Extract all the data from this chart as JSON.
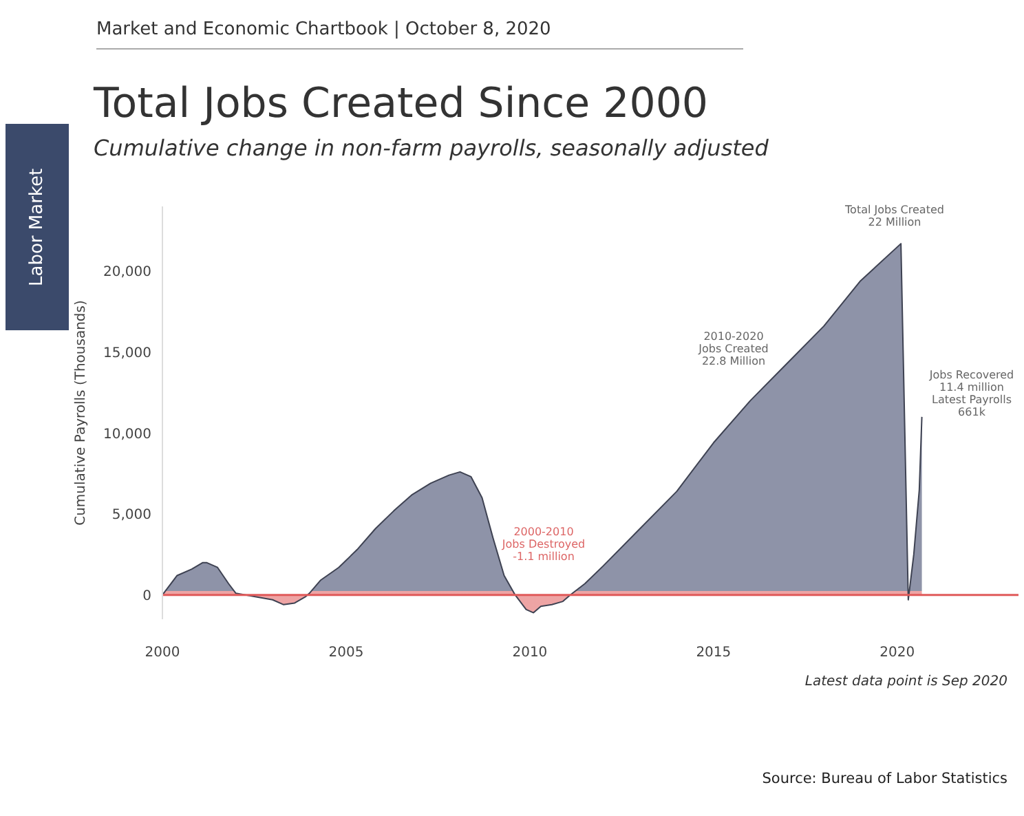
{
  "chart_data": {
    "type": "area",
    "title": "Total Jobs Created Since 2000",
    "subtitle": "Cumulative change in non-farm payrolls, seasonally adjusted",
    "ylabel": "Cumulative Payrolls (Thousands)",
    "x": [
      2000,
      2000.4,
      2000.8,
      2001.1,
      2001.2,
      2001.5,
      2001.8,
      2002.0,
      2002.5,
      2003.0,
      2003.3,
      2003.6,
      2003.9,
      2004.0,
      2004.3,
      2004.8,
      2005.3,
      2005.8,
      2006.3,
      2006.8,
      2007.3,
      2007.8,
      2008.1,
      2008.4,
      2008.7,
      2009.0,
      2009.3,
      2009.6,
      2009.9,
      2010.1,
      2010.3,
      2010.6,
      2010.9,
      2011.1,
      2011.5,
      2012,
      2013,
      2014,
      2015,
      2016,
      2017,
      2018,
      2019,
      2020.1,
      2020.3,
      2020.45,
      2020.6,
      2020.67
    ],
    "series": [
      {
        "color": "#8e93a8",
        "values": [
          0,
          1200,
          1600,
          2000,
          2000,
          1700,
          700,
          100,
          -100,
          -300,
          -600,
          -500,
          -100,
          100,
          900,
          1700,
          2800,
          4100,
          5200,
          6200,
          6900,
          7400,
          7600,
          7300,
          6000,
          3500,
          1200,
          0,
          -900,
          -1100,
          -700,
          -600,
          -400,
          0,
          700,
          1800,
          4100,
          6400,
          9400,
          12000,
          14300,
          16600,
          19400,
          21700,
          -300,
          2500,
          6500,
          11000
        ]
      }
    ],
    "xlim": [
      2000,
      2023.3
    ],
    "xticks": [
      2000,
      2005,
      2010,
      2015,
      2020
    ],
    "ylim": [
      -1500,
      24000
    ],
    "yticks": [
      0,
      {
        "value": 5000,
        "label": "5,000"
      },
      {
        "value": 10000,
        "label": "10,000"
      },
      {
        "value": 15000,
        "label": "15,000"
      },
      {
        "value": 20000,
        "label": "20,000"
      }
    ],
    "ref_lines": [
      {
        "axis": "y",
        "value": 0,
        "color": "#e05a5a"
      }
    ],
    "annotations": [
      "Market and Economic Chartbook | October 8, 2020",
      "Labor Market",
      "Latest data point is Sep 2020",
      "Source: Bureau of Labor Statistics",
      "Total Jobs Created\n22 Million",
      "2010-2020\nJobs Created\n22.8 Million",
      "2000-2010\nJobs Destroyed\n-1.1 million",
      "Jobs Recovered\n11.4 million\nLatest Payrolls\n661k"
    ]
  }
}
